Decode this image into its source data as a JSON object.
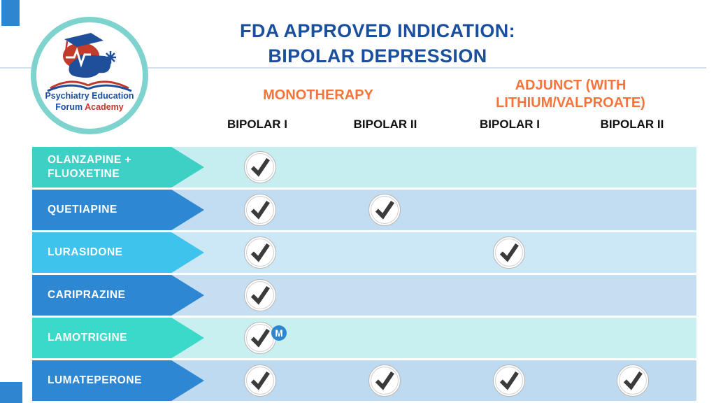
{
  "slide": {
    "title_line1": "FDA APPROVED INDICATION:",
    "title_line2": "BIPOLAR DEPRESSION"
  },
  "logo": {
    "org_line1": "Psychiatry Education",
    "org_line2_word1": "Forum",
    "org_line2_word2": "Academy"
  },
  "header": {
    "group1": "MONOTHERAPY",
    "group2_line1": "ADJUNCT (WITH",
    "group2_line2": "LITHIUM/VALPROATE)",
    "columns": [
      "BIPOLAR I",
      "BIPOLAR II",
      "BIPOLAR I",
      "BIPOLAR II"
    ]
  },
  "badge": {
    "label": "M"
  },
  "rows": [
    {
      "drug": "OLANZAPINE + FLUOXETINE",
      "arrow_color": "#3fd0c5",
      "band_color": "#c6eef1",
      "checks": [
        true,
        false,
        false,
        false
      ],
      "m_badge_col": -1
    },
    {
      "drug": "QUETIAPINE",
      "arrow_color": "#2e87d2",
      "band_color": "#c2dcf1",
      "checks": [
        true,
        true,
        false,
        false
      ],
      "m_badge_col": -1
    },
    {
      "drug": "LURASIDONE",
      "arrow_color": "#3dc3ec",
      "band_color": "#cce8f7",
      "checks": [
        true,
        false,
        true,
        false
      ],
      "m_badge_col": -1
    },
    {
      "drug": "CARIPRAZINE",
      "arrow_color": "#2e87d2",
      "band_color": "#c6def2",
      "checks": [
        true,
        false,
        false,
        false
      ],
      "m_badge_col": -1
    },
    {
      "drug": "LAMOTRIGINE",
      "arrow_color": "#3bd9ca",
      "band_color": "#c9f0f0",
      "checks": [
        true,
        false,
        false,
        false
      ],
      "m_badge_col": 0
    },
    {
      "drug": "LUMATEPERONE",
      "arrow_color": "#2e87d2",
      "band_color": "#bedaf0",
      "checks": [
        true,
        true,
        true,
        true
      ],
      "m_badge_col": -1
    }
  ],
  "colors": {
    "title_blue": "#1a4f9e",
    "header_orange": "#f4743b",
    "accent_blue": "#2e86d1",
    "logo_ring_teal": "#7ed3ce",
    "checkmark": "#3b3b3b",
    "badge_blue": "#2e86d0",
    "divider": "#d5e0ee"
  },
  "chart_data": {
    "type": "table",
    "title": "FDA APPROVED INDICATION: BIPOLAR DEPRESSION",
    "column_groups": [
      {
        "label": "MONOTHERAPY",
        "columns": [
          "BIPOLAR I",
          "BIPOLAR II"
        ]
      },
      {
        "label": "ADJUNCT (WITH LITHIUM/VALPROATE)",
        "columns": [
          "BIPOLAR I",
          "BIPOLAR II"
        ]
      }
    ],
    "columns": [
      "MONOTHERAPY - BIPOLAR I",
      "MONOTHERAPY - BIPOLAR II",
      "ADJUNCT - BIPOLAR I",
      "ADJUNCT - BIPOLAR II"
    ],
    "rows": [
      {
        "drug": "OLANZAPINE + FLUOXETINE",
        "approved": [
          true,
          false,
          false,
          false
        ]
      },
      {
        "drug": "QUETIAPINE",
        "approved": [
          true,
          true,
          false,
          false
        ]
      },
      {
        "drug": "LURASIDONE",
        "approved": [
          true,
          false,
          true,
          false
        ]
      },
      {
        "drug": "CARIPRAZINE",
        "approved": [
          true,
          false,
          false,
          false
        ]
      },
      {
        "drug": "LAMOTRIGINE",
        "approved": [
          true,
          false,
          false,
          false
        ],
        "annotation": "M badge next to the Monotherapy Bipolar I checkmark"
      },
      {
        "drug": "LUMATEPERONE",
        "approved": [
          true,
          true,
          true,
          true
        ]
      }
    ],
    "legend_position": "none",
    "grid": false
  }
}
